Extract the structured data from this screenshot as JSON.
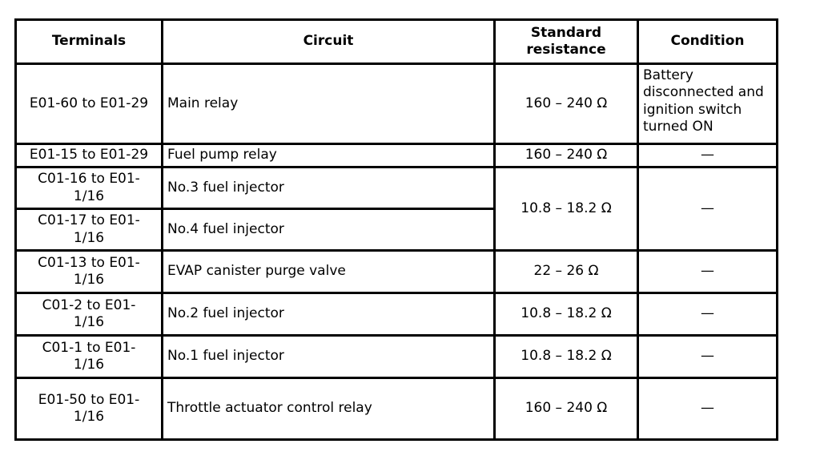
{
  "page": {
    "background_color": "#ffffff",
    "border_color": "#000000",
    "text_color": "#000000"
  },
  "table": {
    "headers": [
      "Terminals",
      "Circuit",
      "Standard resistance",
      "Condition"
    ],
    "rows": [
      {
        "terminals": "E01-60 to E01-29",
        "circuit": "Main relay",
        "resistance": "160 – 240 Ω",
        "condition": "Battery disconnected and ignition switch turned ON"
      },
      {
        "terminals": "E01-15 to E01-29",
        "circuit": "Fuel pump relay",
        "resistance": "160 – 240 Ω",
        "condition": "—"
      },
      {
        "terminals": "C01-16 to E01-1/16",
        "circuit": "No.3 fuel injector",
        "resistance": "10.8 – 18.2 Ω",
        "condition": "—"
      },
      {
        "terminals": "C01-17 to E01-1/16",
        "circuit": "No.4 fuel injector"
      },
      {
        "terminals": "C01-13 to E01-1/16",
        "circuit": "EVAP canister purge valve",
        "resistance": "22 – 26 Ω",
        "condition": "—"
      },
      {
        "terminals": "C01-2 to E01-1/16",
        "circuit": "No.2 fuel injector",
        "resistance": "10.8 – 18.2 Ω",
        "condition": "—"
      },
      {
        "terminals": "C01-1 to E01-1/16",
        "circuit": "No.1 fuel injector",
        "resistance": "10.8 – 18.2 Ω",
        "condition": "—"
      },
      {
        "terminals": "E01-50 to E01-1/16",
        "circuit": "Throttle actuator control relay",
        "resistance": "160 – 240 Ω",
        "condition": "—"
      }
    ]
  }
}
